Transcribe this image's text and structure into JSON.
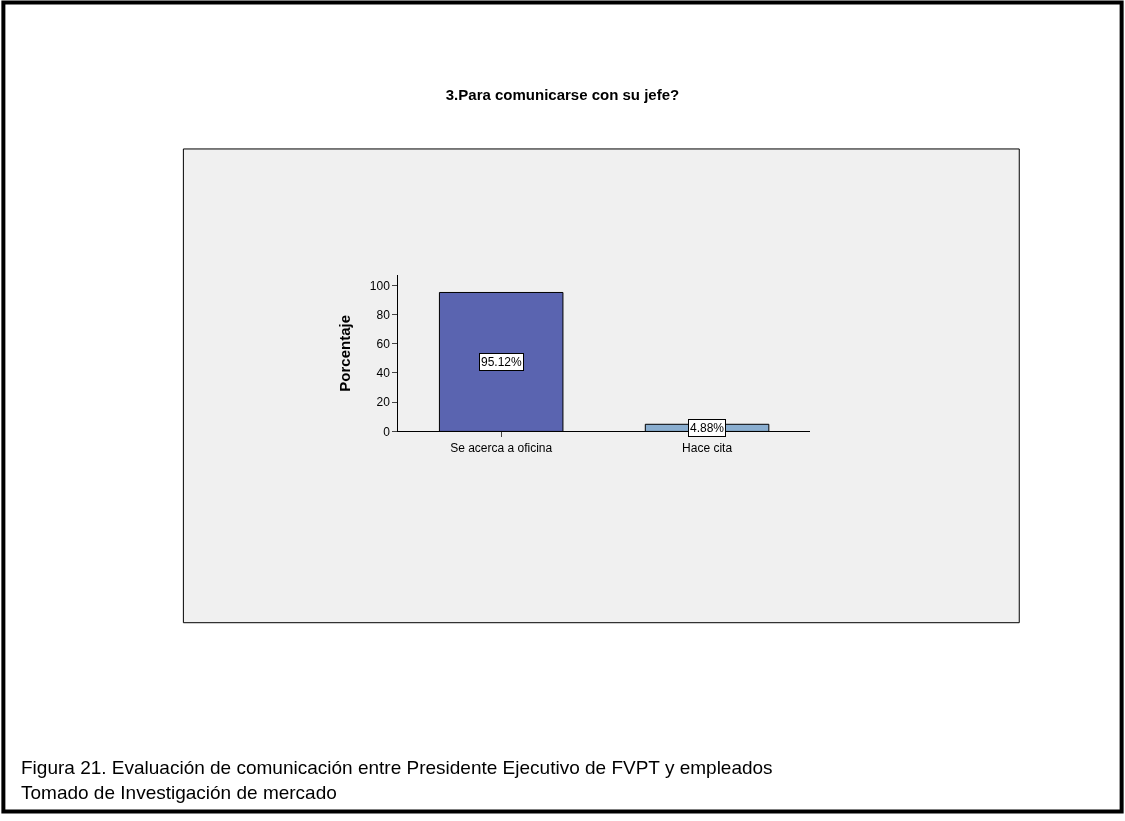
{
  "chart_data": {
    "type": "bar",
    "title": "3.Para comunicarse con su jefe?",
    "ylabel": "Porcentaje",
    "categories": [
      "Se acerca a oficina",
      "Hace cita"
    ],
    "values": [
      95.12,
      4.88
    ],
    "colors": [
      "#5a64b0",
      "#8aaed0"
    ],
    "value_labels": [
      "95.12%",
      "4.88%"
    ],
    "ylim": [
      0,
      107
    ],
    "yticks": [
      0,
      20,
      40,
      60,
      80,
      100
    ],
    "grid": false,
    "legend": false,
    "annotations": [
      "Figura 21. Evaluación de comunicación entre Presidente Ejecutivo de FVPT y empleados",
      "Tomado de Investigación de mercado"
    ]
  }
}
